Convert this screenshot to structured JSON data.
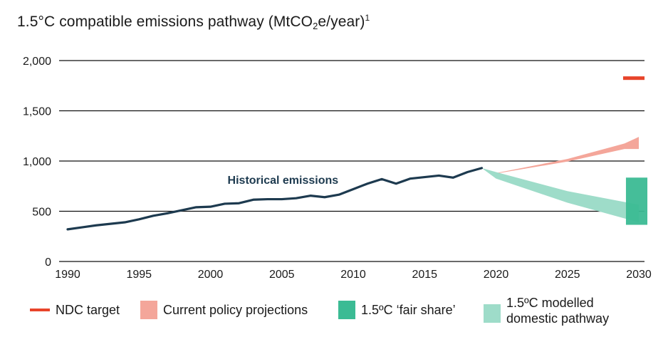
{
  "chart_data": {
    "type": "line",
    "title_parts": {
      "main": "1.5°C compatible emissions pathway (MtCO",
      "sub": "2",
      "after": "e/year)",
      "sup": "1"
    },
    "xlabel": "",
    "ylabel": "",
    "xlim": [
      1990,
      2030
    ],
    "ylim": [
      0,
      2000
    ],
    "grid": true,
    "x_ticks": [
      1990,
      1995,
      2000,
      2005,
      2010,
      2015,
      2020,
      2025,
      2030
    ],
    "y_ticks": [
      0,
      500,
      1000,
      1500,
      2000
    ],
    "y_tick_labels": [
      "0",
      "500",
      "1,000",
      "1,500",
      "2,000"
    ],
    "x_tick_labels": [
      "1990",
      "1995",
      "2000",
      "2005",
      "2010",
      "2015",
      "2020",
      "2025",
      "2030"
    ],
    "annotations": [
      {
        "text": "Historical emissions",
        "x": 2001,
        "y": 1000
      }
    ],
    "series": [
      {
        "name": "Historical emissions",
        "type": "line",
        "color": "#1d3a4f",
        "x": [
          1990,
          1991,
          1992,
          1993,
          1994,
          1995,
          1996,
          1997,
          1998,
          1999,
          2000,
          2001,
          2002,
          2003,
          2004,
          2005,
          2006,
          2007,
          2008,
          2009,
          2010,
          2011,
          2012,
          2013,
          2014,
          2015,
          2016,
          2017,
          2018,
          2019
        ],
        "y": [
          320,
          340,
          360,
          375,
          390,
          420,
          455,
          480,
          510,
          540,
          545,
          575,
          580,
          615,
          620,
          620,
          630,
          655,
          640,
          665,
          720,
          775,
          820,
          775,
          825,
          840,
          855,
          835,
          890,
          930
        ]
      },
      {
        "name": "Current policy projections",
        "type": "band",
        "color": "#f4a69a",
        "x": [
          2019,
          2020,
          2025,
          2029,
          2030
        ],
        "upper": [
          930,
          880,
          1020,
          1175,
          1240
        ],
        "lower": [
          930,
          875,
          995,
          1120,
          1120
        ]
      },
      {
        "name": "1.5ºC modelled domestic pathway",
        "type": "band",
        "color": "#9edcc9",
        "x": [
          2019,
          2020,
          2025,
          2030
        ],
        "upper": [
          930,
          890,
          700,
          565
        ],
        "lower": [
          930,
          825,
          585,
          390
        ]
      },
      {
        "name": "1.5ºC ‘fair share’",
        "type": "range",
        "color": "#3bbb94",
        "opacity": 0.95,
        "x_range": [
          2029.1,
          2030.6
        ],
        "low": 365,
        "high": 835
      },
      {
        "name": "NDC target",
        "type": "marker",
        "color": "#e8442a",
        "x_range": [
          2028.9,
          2030.4
        ],
        "y": 1825
      }
    ],
    "legend": {
      "placement": "bottom",
      "items": [
        {
          "label": "NDC target",
          "kind": "line",
          "color": "#e8442a"
        },
        {
          "label": "Current policy projections",
          "kind": "box",
          "color": "#f4a69a"
        },
        {
          "label": "1.5ºC ‘fair share’",
          "kind": "box",
          "color": "#3bbb94"
        },
        {
          "label_line1": "1.5ºC modelled",
          "label_line2": "domestic pathway",
          "kind": "box",
          "color": "#9edcc9"
        }
      ]
    }
  }
}
